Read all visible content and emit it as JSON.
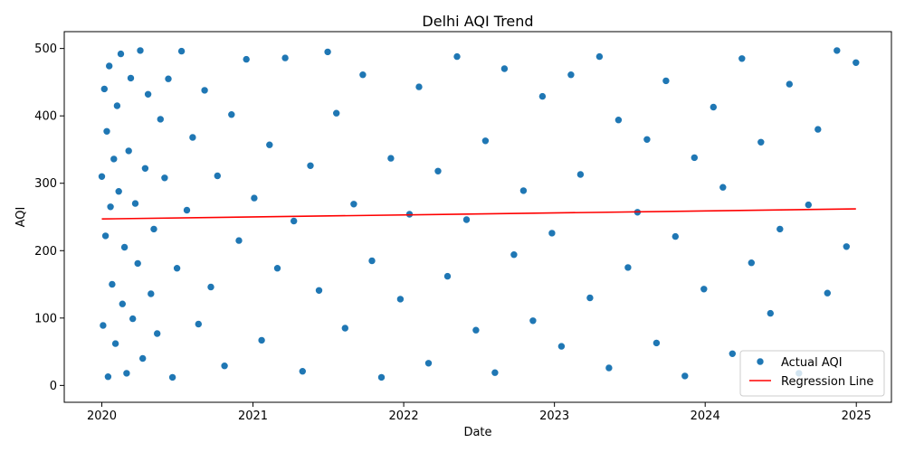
{
  "chart_data": {
    "type": "scatter",
    "title": "Delhi AQI Trend",
    "xlabel": "Date",
    "ylabel": "AQI",
    "x_ticks": [
      "2020",
      "2021",
      "2022",
      "2023",
      "2024",
      "2025"
    ],
    "y_ticks": [
      0,
      100,
      200,
      300,
      400,
      500
    ],
    "xlim": [
      "2019-10-02",
      "2025-03-27"
    ],
    "ylim": [
      -25,
      525
    ],
    "grid": false,
    "legend_position": "lower right",
    "series": [
      {
        "name": "Actual AQI",
        "kind": "scatter",
        "color": "#1f77b4",
        "values": [
          [
            "2020-01-01",
            310
          ],
          [
            "2020-01-04",
            89
          ],
          [
            "2020-01-07",
            440
          ],
          [
            "2020-01-10",
            222
          ],
          [
            "2020-01-13",
            377
          ],
          [
            "2020-01-16",
            13
          ],
          [
            "2020-01-19",
            474
          ],
          [
            "2020-01-22",
            265
          ],
          [
            "2020-01-26",
            150
          ],
          [
            "2020-01-30",
            336
          ],
          [
            "2020-02-03",
            62
          ],
          [
            "2020-02-07",
            415
          ],
          [
            "2020-02-11",
            288
          ],
          [
            "2020-02-16",
            492
          ],
          [
            "2020-02-20",
            121
          ],
          [
            "2020-02-25",
            205
          ],
          [
            "2020-03-01",
            18
          ],
          [
            "2020-03-06",
            348
          ],
          [
            "2020-03-11",
            456
          ],
          [
            "2020-03-16",
            99
          ],
          [
            "2020-03-22",
            270
          ],
          [
            "2020-03-28",
            181
          ],
          [
            "2020-04-03",
            497
          ],
          [
            "2020-04-09",
            40
          ],
          [
            "2020-04-15",
            322
          ],
          [
            "2020-04-22",
            432
          ],
          [
            "2020-04-29",
            136
          ],
          [
            "2020-05-06",
            232
          ],
          [
            "2020-05-14",
            77
          ],
          [
            "2020-05-22",
            395
          ],
          [
            "2020-06-01",
            308
          ],
          [
            "2020-06-10",
            455
          ],
          [
            "2020-06-20",
            12
          ],
          [
            "2020-07-01",
            174
          ],
          [
            "2020-07-12",
            496
          ],
          [
            "2020-07-25",
            260
          ],
          [
            "2020-08-08",
            368
          ],
          [
            "2020-08-22",
            91
          ],
          [
            "2020-09-06",
            438
          ],
          [
            "2020-09-21",
            146
          ],
          [
            "2020-10-07",
            311
          ],
          [
            "2020-10-24",
            29
          ],
          [
            "2020-11-10",
            402
          ],
          [
            "2020-11-28",
            215
          ],
          [
            "2020-12-16",
            484
          ],
          [
            "2021-01-04",
            278
          ],
          [
            "2021-01-22",
            67
          ],
          [
            "2021-02-10",
            357
          ],
          [
            "2021-03-01",
            174
          ],
          [
            "2021-03-20",
            486
          ],
          [
            "2021-04-10",
            244
          ],
          [
            "2021-05-01",
            21
          ],
          [
            "2021-05-20",
            326
          ],
          [
            "2021-06-10",
            141
          ],
          [
            "2021-07-01",
            495
          ],
          [
            "2021-07-22",
            404
          ],
          [
            "2021-08-12",
            85
          ],
          [
            "2021-09-02",
            269
          ],
          [
            "2021-09-24",
            461
          ],
          [
            "2021-10-16",
            185
          ],
          [
            "2021-11-08",
            12
          ],
          [
            "2021-12-01",
            337
          ],
          [
            "2021-12-24",
            128
          ],
          [
            "2022-01-15",
            254
          ],
          [
            "2022-02-07",
            443
          ],
          [
            "2022-03-02",
            33
          ],
          [
            "2022-03-25",
            318
          ],
          [
            "2022-04-17",
            162
          ],
          [
            "2022-05-10",
            488
          ],
          [
            "2022-06-02",
            246
          ],
          [
            "2022-06-25",
            82
          ],
          [
            "2022-07-18",
            363
          ],
          [
            "2022-08-10",
            19
          ],
          [
            "2022-09-02",
            470
          ],
          [
            "2022-09-25",
            194
          ],
          [
            "2022-10-18",
            289
          ],
          [
            "2022-11-10",
            96
          ],
          [
            "2022-12-03",
            429
          ],
          [
            "2022-12-26",
            226
          ],
          [
            "2023-01-18",
            58
          ],
          [
            "2023-02-10",
            461
          ],
          [
            "2023-03-05",
            313
          ],
          [
            "2023-03-28",
            130
          ],
          [
            "2023-04-20",
            488
          ],
          [
            "2023-05-13",
            26
          ],
          [
            "2023-06-05",
            394
          ],
          [
            "2023-06-28",
            175
          ],
          [
            "2023-07-21",
            257
          ],
          [
            "2023-08-13",
            365
          ],
          [
            "2023-09-05",
            63
          ],
          [
            "2023-09-28",
            452
          ],
          [
            "2023-10-21",
            221
          ],
          [
            "2023-11-13",
            14
          ],
          [
            "2023-12-06",
            338
          ],
          [
            "2023-12-29",
            143
          ],
          [
            "2024-01-21",
            413
          ],
          [
            "2024-02-13",
            294
          ],
          [
            "2024-03-07",
            47
          ],
          [
            "2024-03-30",
            485
          ],
          [
            "2024-04-22",
            182
          ],
          [
            "2024-05-15",
            361
          ],
          [
            "2024-06-07",
            107
          ],
          [
            "2024-06-30",
            232
          ],
          [
            "2024-07-23",
            447
          ],
          [
            "2024-08-15",
            18
          ],
          [
            "2024-09-07",
            268
          ],
          [
            "2024-09-30",
            380
          ],
          [
            "2024-10-23",
            137
          ],
          [
            "2024-11-15",
            497
          ],
          [
            "2024-12-08",
            206
          ],
          [
            "2024-12-31",
            479
          ]
        ]
      },
      {
        "name": "Regression Line",
        "kind": "line",
        "color": "#ff0000",
        "values": [
          [
            "2020-01-01",
            247
          ],
          [
            "2024-12-31",
            262
          ]
        ]
      }
    ]
  },
  "legend": {
    "items": [
      {
        "label": "Actual AQI",
        "marker": "circle",
        "color": "#1f77b4"
      },
      {
        "label": "Regression Line",
        "marker": "line",
        "color": "#ff0000"
      }
    ]
  }
}
